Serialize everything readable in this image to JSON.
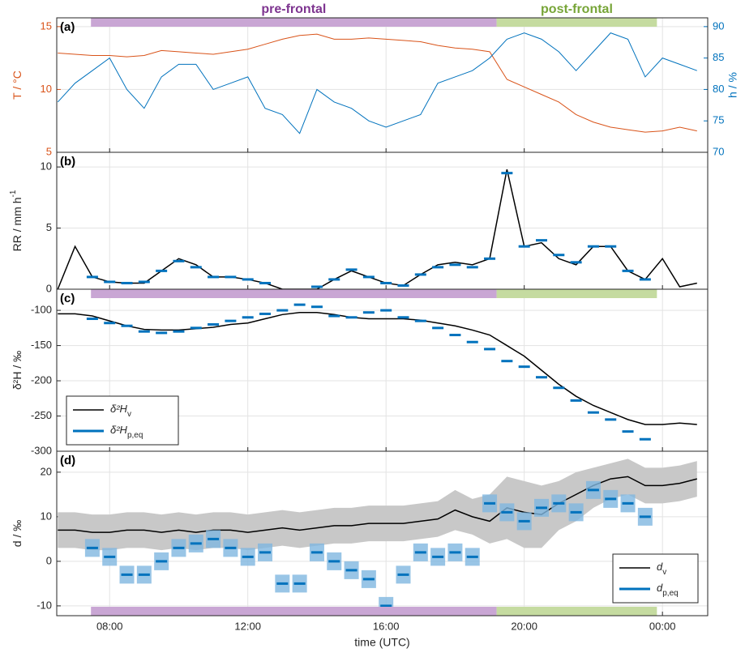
{
  "periods": [
    {
      "label": "pre-frontal",
      "start": 7.46,
      "end": 19.2,
      "color": "#c9a6d4",
      "label_color": "#7e3590"
    },
    {
      "label": "post-frontal",
      "start": 19.2,
      "end": 23.84,
      "color": "#c5dba0",
      "label_color": "#77a538"
    }
  ],
  "chart_data": [
    {
      "type": "line",
      "label": "(a)",
      "ylabel": "T / °C",
      "ylabel_color": "#d95319",
      "y2label": "h / %",
      "y2label_color": "#0072bd",
      "periods_bar": "top",
      "grid": true,
      "x": [
        6.5,
        7,
        7.5,
        8,
        8.5,
        9,
        9.5,
        10,
        10.5,
        11,
        11.5,
        12,
        12.5,
        13,
        13.5,
        14,
        14.5,
        15,
        15.5,
        16,
        16.5,
        17,
        17.5,
        18,
        18.5,
        19,
        19.5,
        20,
        20.5,
        21,
        21.5,
        22,
        22.5,
        23,
        23.5,
        24,
        24.5,
        25
      ],
      "xlim": [
        6.47,
        25.31
      ],
      "xticks": [
        8,
        12,
        16,
        20,
        24
      ],
      "ylim": [
        5,
        15.7
      ],
      "yticks": [
        5,
        10,
        15
      ],
      "y2lim": [
        70,
        91.4
      ],
      "y2ticks": [
        70,
        75,
        80,
        85,
        90
      ],
      "series": [
        {
          "style": "line",
          "color": "#d95319",
          "values": [
            12.9,
            12.8,
            12.7,
            12.7,
            12.6,
            12.7,
            13.1,
            13.0,
            12.9,
            12.8,
            13.0,
            13.2,
            13.6,
            14.0,
            14.3,
            14.4,
            14.0,
            14.0,
            14.1,
            14.0,
            13.9,
            13.8,
            13.5,
            13.3,
            13.2,
            13.0,
            10.8,
            10.2,
            9.6,
            9.0,
            8.0,
            7.4,
            7.0,
            6.8,
            6.6,
            6.7,
            7.0,
            6.7
          ]
        },
        {
          "style": "line",
          "axis": "y2",
          "color": "#0072bd",
          "values": [
            78,
            81,
            83,
            85,
            80,
            77,
            82,
            84,
            84,
            80,
            81,
            82,
            77,
            76,
            73,
            80,
            78,
            77,
            75,
            74,
            75,
            76,
            81,
            82,
            83,
            85,
            88,
            89,
            88,
            86,
            83,
            86,
            89,
            88,
            82,
            85,
            84,
            83
          ]
        }
      ]
    },
    {
      "type": "line",
      "label": "(b)",
      "ylabel": "RR / mm h",
      "ylabel_sup": "-1",
      "grid": true,
      "x": [
        6.5,
        7,
        7.5,
        8,
        8.5,
        9,
        9.5,
        10,
        10.5,
        11,
        11.5,
        12,
        12.5,
        13,
        13.5,
        14,
        14.5,
        15,
        15.5,
        16,
        16.5,
        17,
        17.5,
        18,
        18.5,
        19,
        19.5,
        20,
        20.5,
        21,
        21.5,
        22,
        22.5,
        23,
        23.5,
        24,
        24.5,
        25
      ],
      "xlim": [
        6.47,
        25.31
      ],
      "xticks": [
        8,
        12,
        16,
        20,
        24
      ],
      "ylim": [
        0,
        11.2
      ],
      "yticks": [
        0,
        5,
        10
      ],
      "series": [
        {
          "style": "line",
          "color": "#000000",
          "values": [
            0,
            3.5,
            1.0,
            0.6,
            0.5,
            0.5,
            1.5,
            2.5,
            2.0,
            1.0,
            1.0,
            0.8,
            0.5,
            0,
            0,
            0,
            0.8,
            1.5,
            1.0,
            0.5,
            0.3,
            1.2,
            2.0,
            2.2,
            2.0,
            2.5,
            9.8,
            3.5,
            3.8,
            2.5,
            2.0,
            3.5,
            3.5,
            1.5,
            0.8,
            2.5,
            0.2,
            0.5
          ]
        },
        {
          "style": "dash",
          "color": "#0072bd",
          "values": [
            null,
            null,
            1.0,
            0.6,
            0.5,
            0.6,
            1.5,
            2.3,
            1.8,
            1.0,
            1.0,
            0.8,
            0.5,
            null,
            null,
            0.2,
            0.8,
            1.6,
            1.0,
            0.5,
            0.3,
            1.2,
            1.8,
            2.0,
            1.8,
            2.5,
            9.5,
            3.5,
            4.0,
            2.8,
            2.2,
            3.5,
            3.5,
            1.5,
            0.8,
            null,
            null,
            null
          ]
        }
      ]
    },
    {
      "type": "line",
      "label": "(c)",
      "ylabel": "δ²H / ‰",
      "periods_bar": "top",
      "grid": true,
      "legend": "lower left",
      "x": [
        6.5,
        7,
        7.5,
        8,
        8.5,
        9,
        9.5,
        10,
        10.5,
        11,
        11.5,
        12,
        12.5,
        13,
        13.5,
        14,
        14.5,
        15,
        15.5,
        16,
        16.5,
        17,
        17.5,
        18,
        18.5,
        19,
        19.5,
        20,
        20.5,
        21,
        21.5,
        22,
        22.5,
        23,
        23.5,
        24,
        24.5,
        25
      ],
      "xlim": [
        6.47,
        25.31
      ],
      "xticks": [
        8,
        12,
        16,
        20,
        24
      ],
      "ylim": [
        -300,
        -70
      ],
      "yticks": [
        -300,
        -250,
        -200,
        -150,
        -100
      ],
      "series": [
        {
          "name": "δ²H",
          "name_sub": "v",
          "style": "line",
          "color": "#000000",
          "values": [
            -105,
            -105,
            -108,
            -115,
            -122,
            -127,
            -128,
            -128,
            -126,
            -124,
            -120,
            -118,
            -112,
            -106,
            -103,
            -103,
            -106,
            -110,
            -112,
            -112,
            -112,
            -114,
            -118,
            -122,
            -128,
            -135,
            -150,
            -165,
            -185,
            -205,
            -222,
            -235,
            -245,
            -255,
            -262,
            -262,
            -260,
            -262
          ]
        },
        {
          "name": "δ²H",
          "name_sub": "p,eq",
          "style": "dash",
          "color": "#0072bd",
          "values": [
            null,
            null,
            -112,
            -118,
            -122,
            -130,
            -132,
            -130,
            -125,
            -120,
            -115,
            -110,
            -105,
            -100,
            -92,
            -95,
            -108,
            -110,
            -103,
            -100,
            -110,
            -115,
            -125,
            -135,
            -145,
            -155,
            -172,
            -180,
            -195,
            -210,
            -228,
            -245,
            -255,
            -272,
            -283,
            null,
            null,
            null
          ]
        }
      ]
    },
    {
      "type": "line",
      "label": "(d)",
      "ylabel": "d / ‰",
      "xlabel": "time (UTC)",
      "periods_bar": "bottom",
      "grid": true,
      "legend": "lower right",
      "x": [
        6.5,
        7,
        7.5,
        8,
        8.5,
        9,
        9.5,
        10,
        10.5,
        11,
        11.5,
        12,
        12.5,
        13,
        13.5,
        14,
        14.5,
        15,
        15.5,
        16,
        16.5,
        17,
        17.5,
        18,
        18.5,
        19,
        19.5,
        20,
        20.5,
        21,
        21.5,
        22,
        22.5,
        23,
        23.5,
        24,
        24.5,
        25
      ],
      "xlim": [
        6.47,
        25.31
      ],
      "xticks": [
        {
          "value": 8,
          "label": "08:00"
        },
        {
          "value": 12,
          "label": "12:00"
        },
        {
          "value": 16,
          "label": "16:00"
        },
        {
          "value": 20,
          "label": "20:00"
        },
        {
          "value": 24,
          "label": "00:00"
        }
      ],
      "ylim": [
        -12.2,
        24.7
      ],
      "yticks": [
        -10,
        0,
        10,
        20
      ],
      "band": {
        "color": "#c8c8c8",
        "lower": [
          3,
          3,
          2.5,
          2.5,
          3,
          3,
          2.5,
          3,
          2.5,
          3,
          3,
          2.5,
          3,
          3.5,
          3,
          3.5,
          4,
          4,
          4.5,
          4.5,
          4.5,
          5,
          5.5,
          7,
          6,
          4,
          5,
          3,
          3,
          7,
          9,
          12,
          14,
          15,
          13,
          13,
          13.5,
          14.5
        ],
        "upper": [
          11,
          11,
          10.5,
          10.5,
          11,
          11,
          10.5,
          11,
          10.5,
          11,
          11,
          10.5,
          11,
          11.5,
          11,
          11.5,
          12,
          12,
          12.5,
          12.5,
          12.5,
          13,
          13.5,
          16,
          14,
          15,
          19,
          18,
          17,
          18,
          20,
          21,
          22,
          23,
          21,
          21,
          21.5,
          22.5
        ]
      },
      "series": [
        {
          "name": "d",
          "name_sub": "v",
          "style": "line",
          "color": "#000000",
          "values": [
            7,
            7,
            6.5,
            6.5,
            7,
            7,
            6.5,
            7,
            6.5,
            7,
            7,
            6.5,
            7,
            7.5,
            7,
            7.5,
            8,
            8,
            8.5,
            8.5,
            8.5,
            9,
            9.5,
            11.5,
            10,
            9,
            12,
            11,
            10.5,
            13,
            15,
            17,
            18.5,
            19,
            17,
            17,
            17.5,
            18.5
          ]
        },
        {
          "name": "d",
          "name_sub": "p,eq",
          "style": "dash",
          "color": "#0072bd",
          "error_color": "#7fb6e0",
          "values": [
            null,
            null,
            3,
            1,
            -3,
            -3,
            0,
            3,
            4,
            5,
            3,
            1,
            2,
            -5,
            -5,
            2,
            0,
            -2,
            -4,
            -10,
            -3,
            2,
            1,
            2,
            1,
            13,
            11,
            9,
            12,
            13,
            11,
            16,
            14,
            13,
            10,
            null,
            null,
            null
          ],
          "errors": [
            null,
            null,
            2,
            2,
            2,
            2,
            2,
            2,
            2,
            2,
            2,
            2,
            2,
            2,
            2,
            2,
            2,
            2,
            2,
            2,
            2,
            2,
            2,
            2,
            2,
            2,
            2,
            2,
            2,
            2,
            2,
            2,
            2,
            2,
            2,
            null,
            null,
            null
          ]
        }
      ]
    }
  ]
}
